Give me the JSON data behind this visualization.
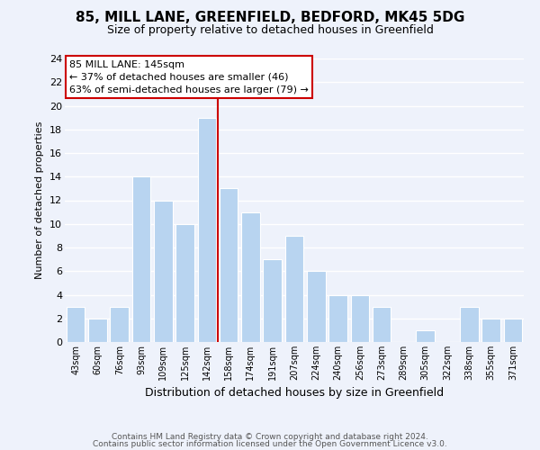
{
  "title": "85, MILL LANE, GREENFIELD, BEDFORD, MK45 5DG",
  "subtitle": "Size of property relative to detached houses in Greenfield",
  "xlabel": "Distribution of detached houses by size in Greenfield",
  "ylabel": "Number of detached properties",
  "categories": [
    "43sqm",
    "60sqm",
    "76sqm",
    "93sqm",
    "109sqm",
    "125sqm",
    "142sqm",
    "158sqm",
    "174sqm",
    "191sqm",
    "207sqm",
    "224sqm",
    "240sqm",
    "256sqm",
    "273sqm",
    "289sqm",
    "305sqm",
    "322sqm",
    "338sqm",
    "355sqm",
    "371sqm"
  ],
  "values": [
    3,
    2,
    3,
    14,
    12,
    10,
    19,
    13,
    11,
    7,
    9,
    6,
    4,
    4,
    3,
    0,
    1,
    0,
    3,
    2,
    2
  ],
  "highlight_index": 6,
  "bar_color": "#b8d4f0",
  "highlight_line_color": "#cc0000",
  "ylim": [
    0,
    24
  ],
  "yticks": [
    0,
    2,
    4,
    6,
    8,
    10,
    12,
    14,
    16,
    18,
    20,
    22,
    24
  ],
  "annotation_title": "85 MILL LANE: 145sqm",
  "annotation_line1": "← 37% of detached houses are smaller (46)",
  "annotation_line2": "63% of semi-detached houses are larger (79) →",
  "annotation_box_color": "#ffffff",
  "annotation_box_edge": "#cc0000",
  "background_color": "#eef2fb",
  "grid_color": "#ffffff",
  "footer1": "Contains HM Land Registry data © Crown copyright and database right 2024.",
  "footer2": "Contains public sector information licensed under the Open Government Licence v3.0."
}
